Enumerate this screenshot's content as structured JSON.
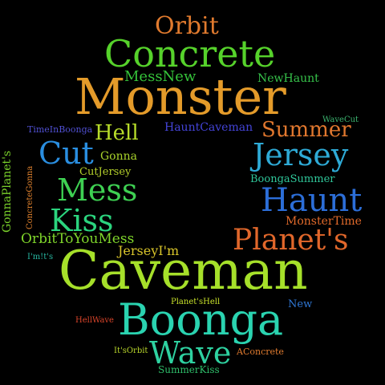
{
  "words": [
    {
      "text": "Orbit",
      "color": "#e07a2e"
    },
    {
      "text": "Concrete",
      "color": "#56d22b"
    },
    {
      "text": "MessNew",
      "color": "#35c43a"
    },
    {
      "text": "NewHaunt",
      "color": "#36c24a"
    },
    {
      "text": "Monster",
      "color": "#e49b2a"
    },
    {
      "text": "WaveCut",
      "color": "#3bb36f"
    },
    {
      "text": "TimeInBoonga",
      "color": "#5050d2"
    },
    {
      "text": "Hell",
      "color": "#b7dc2a"
    },
    {
      "text": "HauntCaveman",
      "color": "#4444d8"
    },
    {
      "text": "Summer",
      "color": "#e0772e"
    },
    {
      "text": "Cut",
      "color": "#2a8ee0"
    },
    {
      "text": "Gonna",
      "color": "#a8d22b"
    },
    {
      "text": "Jersey",
      "color": "#2eaad6"
    },
    {
      "text": "CutJersey",
      "color": "#b4cf2b"
    },
    {
      "text": "BoongaSummer",
      "color": "#2fc79a"
    },
    {
      "text": "Mess",
      "color": "#3ed052"
    },
    {
      "text": "Haunt",
      "color": "#2c6ed8"
    },
    {
      "text": "Kiss",
      "color": "#2bd47e"
    },
    {
      "text": "MonsterTime",
      "color": "#e16a2b"
    },
    {
      "text": "OrbitToYouMess",
      "color": "#7fd52b"
    },
    {
      "text": "Planet's",
      "color": "#e1672b"
    },
    {
      "text": "JerseyI'm",
      "color": "#d8c42a"
    },
    {
      "text": "I'm!t's",
      "color": "#28b9a3"
    },
    {
      "text": "Caveman",
      "color": "#a6e02a"
    },
    {
      "text": "Planet'sHell",
      "color": "#c8e12a"
    },
    {
      "text": "New",
      "color": "#2f78d6"
    },
    {
      "text": "Boonga",
      "color": "#2ad3b0"
    },
    {
      "text": "HellWave",
      "color": "#d9442a"
    },
    {
      "text": "Wave",
      "color": "#2ed1a0"
    },
    {
      "text": "It'sOrbit",
      "color": "#b8d52b"
    },
    {
      "text": "AConcrete",
      "color": "#e07b2f"
    },
    {
      "text": "SummerKiss",
      "color": "#2fbf6b"
    },
    {
      "text": "GonnaPlanet's",
      "color": "#7ad12b"
    },
    {
      "text": "ConcreteGonna",
      "color": "#e0822e"
    }
  ]
}
